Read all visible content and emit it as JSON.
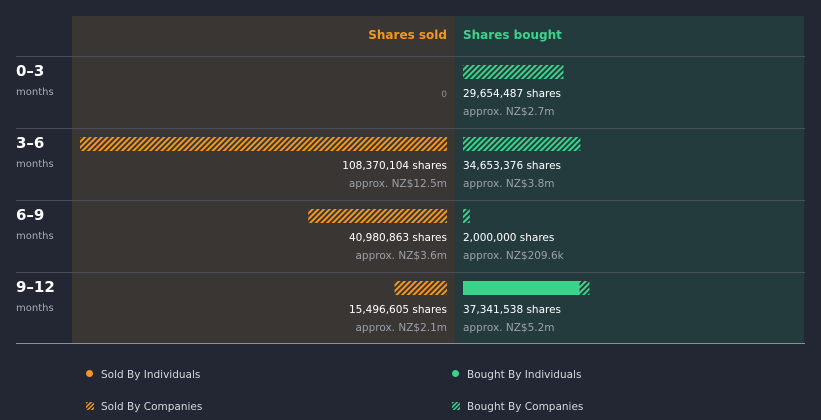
{
  "chart_data": {
    "type": "bar",
    "orientation": "horizontal-diverging",
    "headers": {
      "sold": "Shares sold",
      "bought": "Shares bought"
    },
    "unit_label": "months",
    "rows": [
      {
        "period": "0–3",
        "sold": {
          "individuals": 0,
          "companies": 0,
          "shares_label": "0",
          "approx_label": ""
        },
        "bought": {
          "individuals": 0,
          "companies": 29654487,
          "shares_label": "29,654,487 shares",
          "approx_label": "approx. NZ$2.7m"
        }
      },
      {
        "period": "3–6",
        "sold": {
          "individuals": 0,
          "companies": 108370104,
          "shares_label": "108,370,104 shares",
          "approx_label": "approx. NZ$12.5m"
        },
        "bought": {
          "individuals": 0,
          "companies": 34653376,
          "shares_label": "34,653,376 shares",
          "approx_label": "approx. NZ$3.8m"
        }
      },
      {
        "period": "6–9",
        "sold": {
          "individuals": 0,
          "companies": 40980863,
          "shares_label": "40,980,863 shares",
          "approx_label": "approx. NZ$3.6m"
        },
        "bought": {
          "individuals": 0,
          "companies": 2000000,
          "shares_label": "2,000,000 shares",
          "approx_label": "approx. NZ$209.6k"
        }
      },
      {
        "period": "9–12",
        "sold": {
          "individuals": 0,
          "companies": 15496605,
          "shares_label": "15,496,605 shares",
          "approx_label": "approx. NZ$2.1m"
        },
        "bought": {
          "individuals": 34400000,
          "companies": 2941538,
          "shares_label": "37,341,538 shares",
          "approx_label": "approx. NZ$5.2m"
        }
      }
    ],
    "legend": [
      {
        "key": "sold_individuals",
        "label": "Sold By Individuals",
        "color": "#f5961e",
        "style": "solid"
      },
      {
        "key": "bought_individuals",
        "label": "Bought By Individuals",
        "color": "#3ad48a",
        "style": "solid"
      },
      {
        "key": "sold_companies",
        "label": "Sold By Companies",
        "color": "#f5961e",
        "style": "hatched"
      },
      {
        "key": "bought_companies",
        "label": "Bought By Companies",
        "color": "#3ad48a",
        "style": "hatched"
      }
    ],
    "legend_placement": "bottom",
    "colors": {
      "sold": "#f5961e",
      "bought": "#3ad48a",
      "sold_panel": "#3a3633",
      "bought_panel": "#243b3e",
      "background": "#222733"
    }
  }
}
